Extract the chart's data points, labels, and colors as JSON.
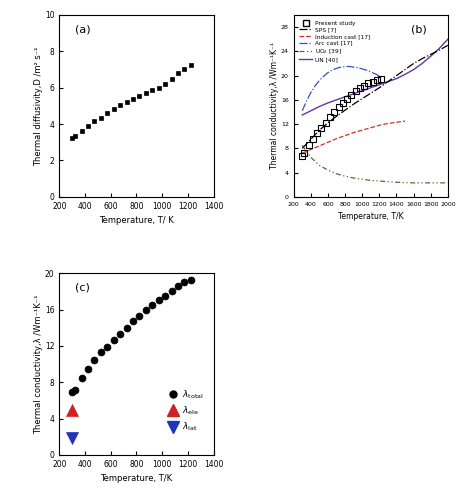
{
  "panel_a": {
    "label": "(a)",
    "T": [
      300,
      323,
      373,
      423,
      473,
      523,
      573,
      623,
      673,
      723,
      773,
      823,
      873,
      923,
      973,
      1023,
      1073,
      1123,
      1173,
      1223
    ],
    "D": [
      3.25,
      3.35,
      3.6,
      3.9,
      4.15,
      4.35,
      4.6,
      4.85,
      5.05,
      5.2,
      5.4,
      5.55,
      5.7,
      5.85,
      6.0,
      6.2,
      6.5,
      6.8,
      7.05,
      7.25
    ],
    "xlabel": "Temperature, T/ K",
    "ylabel": "Thermal diffusivity,D /m² s⁻¹",
    "xlim": [
      200,
      1400
    ],
    "ylim": [
      0,
      10
    ],
    "xticks": [
      200,
      400,
      600,
      800,
      1000,
      1200,
      1400
    ],
    "yticks": [
      0,
      2,
      4,
      6,
      8,
      10
    ]
  },
  "panel_b": {
    "label": "(b)",
    "present_T": [
      300,
      323,
      373,
      423,
      473,
      523,
      573,
      623,
      673,
      723,
      773,
      823,
      873,
      923,
      973,
      1023,
      1073,
      1123,
      1173,
      1223
    ],
    "present_lambda": [
      6.8,
      7.2,
      8.5,
      9.5,
      10.5,
      11.3,
      12.2,
      13.2,
      14.0,
      14.8,
      15.5,
      16.1,
      16.8,
      17.4,
      17.9,
      18.3,
      18.7,
      19.0,
      19.2,
      19.4
    ],
    "SPS_T": [
      300,
      400,
      500,
      600,
      700,
      800,
      900,
      1000,
      1100,
      1200,
      1300,
      1400,
      1500,
      1600,
      1700,
      1800,
      1900,
      2000
    ],
    "SPS_lambda": [
      8.0,
      9.5,
      11.0,
      12.2,
      13.3,
      14.3,
      15.3,
      16.2,
      17.1,
      18.0,
      19.0,
      20.0,
      21.0,
      22.0,
      22.8,
      23.5,
      24.2,
      25.0
    ],
    "induction_T": [
      300,
      400,
      500,
      600,
      700,
      800,
      900,
      1000,
      1100,
      1200,
      1300,
      1400,
      1500
    ],
    "induction_lambda": [
      7.2,
      7.8,
      8.4,
      9.0,
      9.6,
      10.1,
      10.6,
      11.0,
      11.4,
      11.8,
      12.1,
      12.3,
      12.5
    ],
    "arc_T": [
      300,
      350,
      400,
      450,
      500,
      550,
      600,
      650,
      700,
      750,
      800,
      850,
      900,
      950,
      1000,
      1050,
      1100,
      1150,
      1200
    ],
    "arc_lambda": [
      14.2,
      15.8,
      17.2,
      18.3,
      19.2,
      19.9,
      20.5,
      20.9,
      21.2,
      21.4,
      21.5,
      21.5,
      21.4,
      21.3,
      21.1,
      20.9,
      20.6,
      20.3,
      19.9
    ],
    "UO2_T": [
      300,
      400,
      500,
      600,
      700,
      800,
      900,
      1000,
      1100,
      1200,
      1300,
      1400,
      1500,
      1600,
      1700,
      1800,
      1900,
      2000
    ],
    "UO2_lambda": [
      8.5,
      6.5,
      5.2,
      4.4,
      3.8,
      3.4,
      3.1,
      2.9,
      2.7,
      2.6,
      2.5,
      2.4,
      2.35,
      2.3,
      2.3,
      2.3,
      2.3,
      2.3
    ],
    "UN_T": [
      300,
      400,
      500,
      600,
      700,
      800,
      900,
      1000,
      1100,
      1200,
      1300,
      1400,
      1500,
      1600,
      1700,
      1800,
      1900,
      2000
    ],
    "UN_lambda": [
      13.5,
      14.2,
      14.9,
      15.5,
      16.0,
      16.5,
      17.0,
      17.5,
      18.0,
      18.5,
      19.0,
      19.5,
      20.2,
      21.0,
      22.0,
      23.2,
      24.5,
      26.0
    ],
    "xlabel": "Temperature, T/K",
    "ylabel": "Thermal conductivity,λ /Wm⁻¹K⁻¹",
    "xlim": [
      200,
      2000
    ],
    "ylim": [
      0,
      30
    ],
    "xticks": [
      200,
      400,
      600,
      800,
      1000,
      1200,
      1400,
      1600,
      1800,
      2000
    ],
    "yticks": [
      0,
      4,
      8,
      12,
      16,
      20,
      24,
      28
    ]
  },
  "panel_c": {
    "label": "(c)",
    "T_total": [
      300,
      323,
      373,
      423,
      473,
      523,
      573,
      623,
      673,
      723,
      773,
      823,
      873,
      923,
      973,
      1023,
      1073,
      1123,
      1173,
      1223
    ],
    "lambda_total": [
      6.9,
      7.2,
      8.5,
      9.5,
      10.5,
      11.3,
      11.9,
      12.7,
      13.3,
      14.0,
      14.7,
      15.3,
      15.9,
      16.5,
      17.0,
      17.5,
      18.0,
      18.6,
      19.0,
      19.3
    ],
    "T_ele": [
      300
    ],
    "lambda_ele": [
      5.0
    ],
    "T_lat": [
      300
    ],
    "lambda_lat": [
      1.9
    ],
    "xlabel": "Temperature, T/K",
    "ylabel": "Thermal conductivity,λ /Wm⁻¹K⁻¹",
    "xlim": [
      200,
      1400
    ],
    "ylim": [
      0,
      20
    ],
    "xticks": [
      200,
      400,
      600,
      800,
      1000,
      1200,
      1400
    ],
    "yticks": [
      0,
      4,
      8,
      12,
      16,
      20
    ]
  },
  "figure_bg": "#ffffff",
  "axes_bg": "#ffffff"
}
